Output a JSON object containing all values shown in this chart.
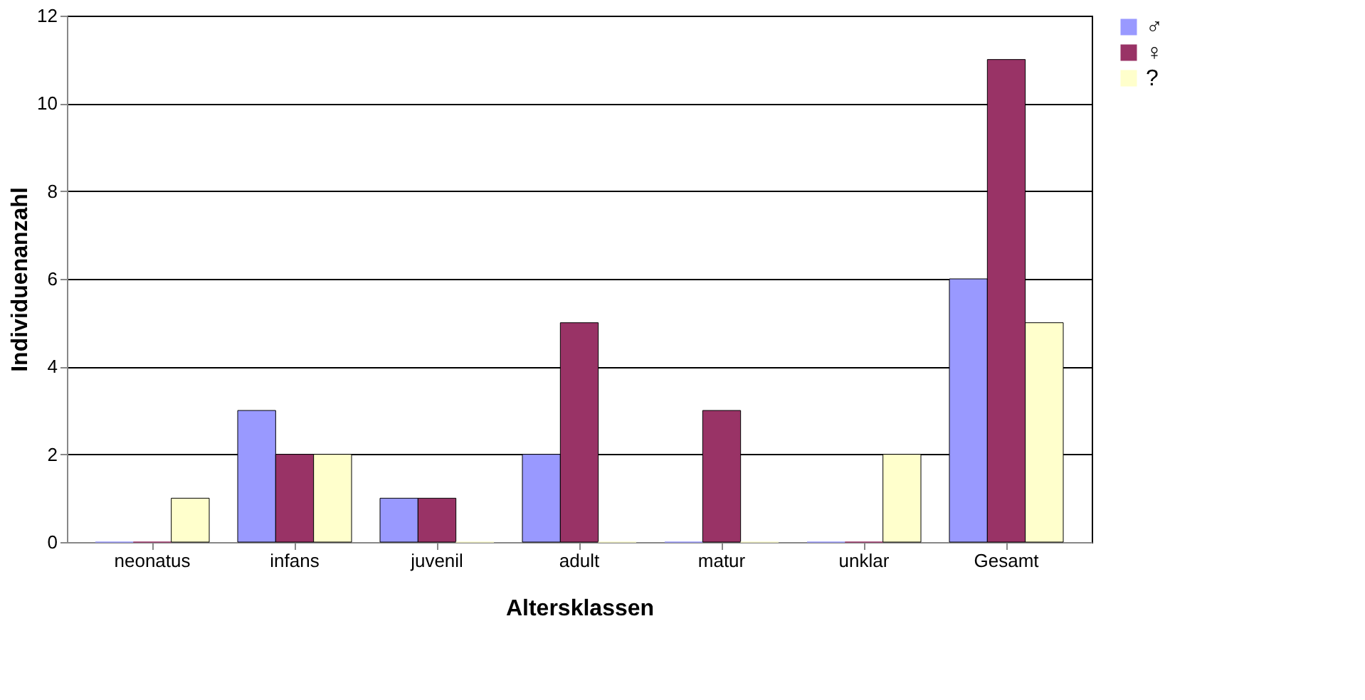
{
  "chart_data": {
    "type": "bar",
    "xlabel": "Altersklassen",
    "ylabel": "Individuenanzahl",
    "categories": [
      "neonatus",
      "infans",
      "juvenil",
      "adult",
      "matur",
      "unklar",
      "Gesamt"
    ],
    "series": [
      {
        "name": "♂",
        "color": "#9999ff",
        "values": [
          0,
          3,
          1,
          2,
          0,
          0,
          6
        ]
      },
      {
        "name": "♀",
        "color": "#993366",
        "values": [
          0,
          2,
          1,
          5,
          3,
          0,
          11
        ]
      },
      {
        "name": "?",
        "color": "#ffffcc",
        "values": [
          1,
          2,
          0,
          0,
          0,
          2,
          5
        ]
      }
    ],
    "ylim": [
      0,
      12
    ],
    "yticks": [
      0,
      2,
      4,
      6,
      8,
      10,
      12
    ],
    "grid": "y",
    "legend": "right"
  }
}
